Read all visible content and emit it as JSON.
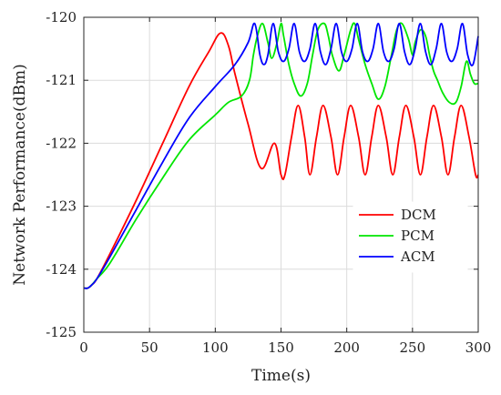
{
  "chart_data": {
    "type": "line",
    "title": "",
    "xlabel": "Time(s)",
    "ylabel": "Network Performance(dBm)",
    "xlim": [
      0,
      300
    ],
    "ylim": [
      -125,
      -120
    ],
    "xticks": [
      0,
      50,
      100,
      150,
      200,
      250,
      300
    ],
    "xtick_labels": [
      "0",
      "50",
      "100",
      "150",
      "200",
      "250",
      "300"
    ],
    "yticks": [
      -125,
      -124,
      -123,
      -122,
      -121,
      -120
    ],
    "ytick_labels": [
      "-125",
      "-124",
      "-123",
      "-122",
      "-121",
      "-120"
    ],
    "grid": true,
    "legend_position": "lower-right",
    "series": [
      {
        "name": "DCM",
        "color": "#ff0000",
        "x": [
          0,
          3,
          6,
          10,
          20,
          40,
          60,
          80,
          95,
          104,
          110,
          115,
          125,
          135,
          145,
          150,
          153,
          158,
          163,
          168,
          172,
          177,
          182,
          188,
          193,
          198,
          203,
          209,
          214,
          219,
          224,
          230,
          235,
          240,
          245,
          251,
          256,
          261,
          266,
          272,
          277,
          282,
          287,
          293,
          298,
          300
        ],
        "y": [
          -124.3,
          -124.3,
          -124.25,
          -124.15,
          -123.75,
          -122.9,
          -122.0,
          -121.1,
          -120.55,
          -120.25,
          -120.45,
          -120.9,
          -121.7,
          -122.4,
          -122.0,
          -122.5,
          -122.5,
          -121.9,
          -121.4,
          -121.9,
          -122.5,
          -121.9,
          -121.4,
          -121.9,
          -122.5,
          -121.9,
          -121.4,
          -121.9,
          -122.5,
          -121.9,
          -121.4,
          -121.9,
          -122.5,
          -121.9,
          -121.4,
          -121.9,
          -122.5,
          -121.9,
          -121.4,
          -121.9,
          -122.5,
          -121.9,
          -121.4,
          -121.9,
          -122.5,
          -122.5
        ]
      },
      {
        "name": "PCM",
        "color": "#00e600",
        "x": [
          0,
          3,
          6,
          10,
          20,
          40,
          60,
          80,
          100,
          110,
          120,
          126,
          129,
          132,
          136,
          140,
          143,
          147,
          150,
          152,
          156,
          160,
          165,
          170,
          174,
          178,
          183,
          186,
          189,
          194,
          198,
          203,
          206,
          209,
          214,
          219,
          224,
          229,
          234,
          238,
          242,
          247,
          250,
          252,
          256,
          260,
          263,
          266,
          269,
          273,
          278,
          283,
          287,
          291,
          294,
          297,
          300
        ],
        "y": [
          -124.3,
          -124.3,
          -124.25,
          -124.15,
          -123.9,
          -123.2,
          -122.55,
          -121.95,
          -121.55,
          -121.35,
          -121.25,
          -121.0,
          -120.6,
          -120.3,
          -120.1,
          -120.4,
          -120.65,
          -120.4,
          -120.1,
          -120.3,
          -120.75,
          -121.05,
          -121.25,
          -121.05,
          -120.6,
          -120.2,
          -120.1,
          -120.3,
          -120.6,
          -120.85,
          -120.6,
          -120.2,
          -120.1,
          -120.35,
          -120.75,
          -121.05,
          -121.3,
          -121.1,
          -120.6,
          -120.2,
          -120.1,
          -120.35,
          -120.6,
          -120.4,
          -120.2,
          -120.3,
          -120.6,
          -120.85,
          -121.0,
          -121.2,
          -121.35,
          -121.35,
          -121.1,
          -120.7,
          -120.9,
          -121.05,
          -121.05
        ]
      },
      {
        "name": "ACM",
        "color": "#0000ff",
        "x": [
          0,
          3,
          6,
          10,
          20,
          40,
          60,
          80,
          100,
          115,
          125,
          130,
          134,
          137,
          140,
          144,
          148,
          152,
          156,
          160,
          164,
          168,
          172,
          176,
          180,
          184,
          188,
          192,
          196,
          200,
          204,
          208,
          212,
          216,
          220,
          224,
          228,
          232,
          236,
          240,
          244,
          248,
          252,
          256,
          260,
          264,
          268,
          272,
          276,
          280,
          284,
          288,
          292,
          296,
          300
        ],
        "y": [
          -124.3,
          -124.3,
          -124.25,
          -124.15,
          -123.8,
          -123.05,
          -122.3,
          -121.6,
          -121.1,
          -120.75,
          -120.4,
          -120.1,
          -120.6,
          -120.75,
          -120.6,
          -120.1,
          -120.55,
          -120.7,
          -120.5,
          -120.1,
          -120.55,
          -120.7,
          -120.5,
          -120.1,
          -120.55,
          -120.75,
          -120.5,
          -120.1,
          -120.55,
          -120.7,
          -120.5,
          -120.1,
          -120.55,
          -120.7,
          -120.5,
          -120.1,
          -120.55,
          -120.7,
          -120.5,
          -120.1,
          -120.55,
          -120.75,
          -120.5,
          -120.1,
          -120.55,
          -120.75,
          -120.5,
          -120.1,
          -120.55,
          -120.7,
          -120.5,
          -120.1,
          -120.6,
          -120.75,
          -120.3
        ]
      }
    ]
  }
}
